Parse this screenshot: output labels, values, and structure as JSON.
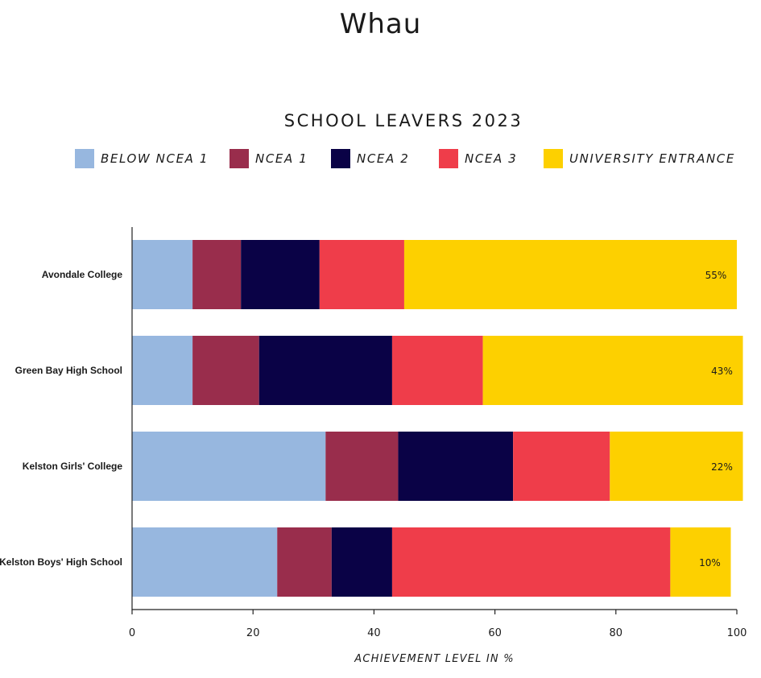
{
  "page_title": "Whau",
  "chart_data": {
    "type": "bar",
    "orientation": "horizontal",
    "stacked": true,
    "title": "SCHOOL LEAVERS 2023",
    "xlabel": "ACHIEVEMENT LEVEL IN %",
    "ylabel": "",
    "xlim": [
      0,
      100
    ],
    "x_ticks": [
      "0",
      "20",
      "40",
      "60",
      "80",
      "100"
    ],
    "legend_position": "top",
    "grid": false,
    "categories": [
      "Avondale College",
      "Green Bay High School",
      "Kelston Girls' College",
      "Kelston Boys' High School"
    ],
    "series": [
      {
        "name": "BELOW NCEA 1",
        "color": "#97b7df",
        "values": [
          10,
          10,
          32,
          24
        ]
      },
      {
        "name": "NCEA 1",
        "color": "#992d4c",
        "values": [
          8,
          11,
          12,
          9
        ]
      },
      {
        "name": "NCEA 2",
        "color": "#0a0246",
        "values": [
          13,
          22,
          19,
          10
        ]
      },
      {
        "name": "NCEA 3",
        "color": "#ef3d4a",
        "values": [
          14,
          15,
          16,
          46
        ]
      },
      {
        "name": "UNIVERSITY ENTRANCE",
        "color": "#fdd000",
        "values": [
          55,
          43,
          22,
          10
        ]
      }
    ],
    "data_labels": [
      "55%",
      "43%",
      "22%",
      "10%"
    ]
  }
}
